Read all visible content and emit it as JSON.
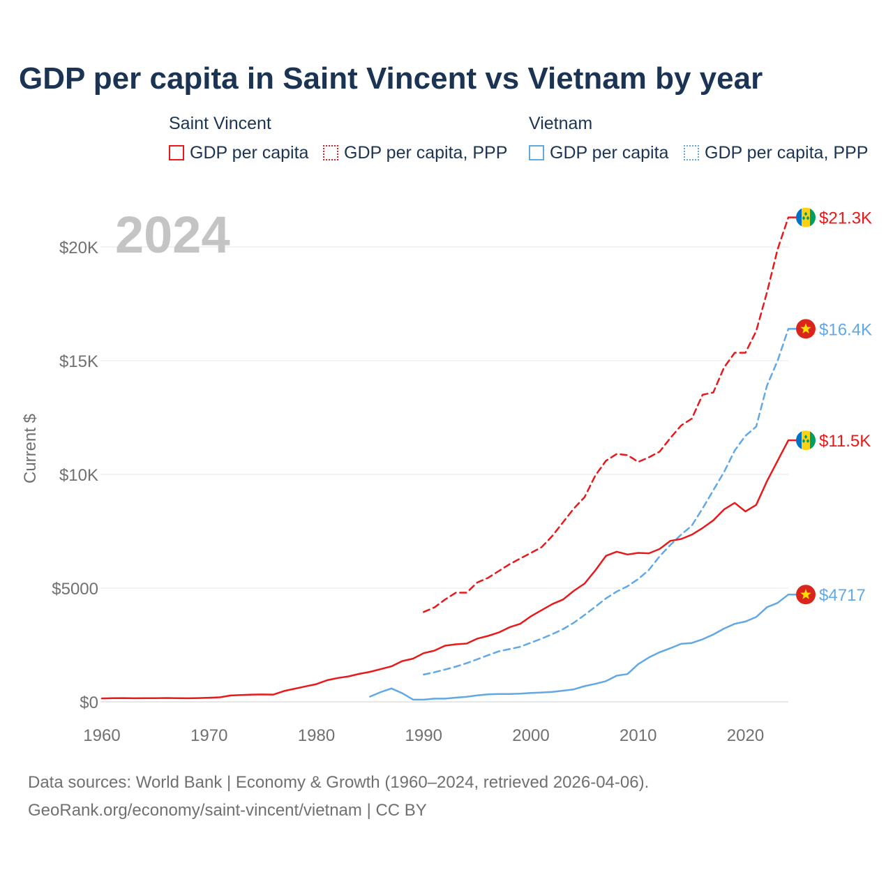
{
  "title": "GDP per capita in Saint Vincent vs Vietnam by year",
  "legend": {
    "groups": [
      {
        "name": "Saint Vincent",
        "items": [
          "GDP per capita",
          "GDP per capita, PPP"
        ]
      },
      {
        "name": "Vietnam",
        "items": [
          "GDP per capita",
          "GDP per capita, PPP"
        ]
      }
    ]
  },
  "colors": {
    "saint_vincent": "#e8191b",
    "vietnam": "#62a8e5",
    "title": "#1b3454",
    "year_watermark": "#c4c4c4"
  },
  "year_label": "2024",
  "chart_data": {
    "type": "line",
    "title": "GDP per capita in Saint Vincent vs Vietnam by year",
    "xlabel": "",
    "ylabel": "Current $",
    "xlim": [
      1960,
      2024
    ],
    "ylim": [
      0,
      22000
    ],
    "x_ticks": [
      1960,
      1970,
      1980,
      1990,
      2000,
      2010,
      2020
    ],
    "x_tick_labels": [
      "1960",
      "1970",
      "1980",
      "1990",
      "2000",
      "2010",
      "2020"
    ],
    "y_ticks": [
      0,
      5000,
      10000,
      15000,
      20000
    ],
    "y_tick_labels": [
      "$0",
      "$5000",
      "$10K",
      "$15K",
      "$20K"
    ],
    "grid": true,
    "series": [
      {
        "name": "Saint Vincent GDP per capita PPP",
        "country": "Saint Vincent",
        "color": "#e8191b",
        "dash": "dashed",
        "end_label": "$21.3K",
        "flag": "saint-vincent",
        "x": [
          1990,
          1991,
          1992,
          1993,
          1994,
          1995,
          1996,
          1997,
          1998,
          1999,
          2000,
          2001,
          2002,
          2003,
          2004,
          2005,
          2006,
          2007,
          2008,
          2009,
          2010,
          2011,
          2012,
          2013,
          2014,
          2015,
          2016,
          2017,
          2018,
          2019,
          2020,
          2021,
          2022,
          2023,
          2024
        ],
        "values": [
          3950,
          4150,
          4500,
          4800,
          4800,
          5250,
          5450,
          5750,
          6050,
          6300,
          6550,
          6800,
          7300,
          7900,
          8500,
          9000,
          9950,
          10600,
          10900,
          10850,
          10550,
          10750,
          11000,
          11600,
          12150,
          12450,
          13500,
          13600,
          14700,
          15350,
          15350,
          16300,
          18000,
          19900,
          21300
        ]
      },
      {
        "name": "Vietnam GDP per capita PPP",
        "country": "Vietnam",
        "color": "#62a8e5",
        "dash": "dashed",
        "end_label": "$16.4K",
        "flag": "vietnam",
        "x": [
          1990,
          1991,
          1992,
          1993,
          1994,
          1995,
          1996,
          1997,
          1998,
          1999,
          2000,
          2001,
          2002,
          2003,
          2004,
          2005,
          2006,
          2007,
          2008,
          2009,
          2010,
          2011,
          2012,
          2013,
          2014,
          2015,
          2016,
          2017,
          2018,
          2019,
          2020,
          2021,
          2022,
          2023,
          2024
        ],
        "values": [
          1200,
          1300,
          1420,
          1550,
          1700,
          1870,
          2050,
          2220,
          2320,
          2420,
          2600,
          2780,
          2980,
          3200,
          3480,
          3820,
          4180,
          4550,
          4850,
          5080,
          5400,
          5800,
          6400,
          6900,
          7350,
          7750,
          8500,
          9300,
          10100,
          11050,
          11700,
          12100,
          13900,
          15000,
          16400
        ]
      },
      {
        "name": "Saint Vincent GDP per capita",
        "country": "Saint Vincent",
        "color": "#e8191b",
        "dash": "solid",
        "end_label": "$11.5K",
        "flag": "saint-vincent",
        "x": [
          1960,
          1961,
          1962,
          1963,
          1964,
          1965,
          1966,
          1967,
          1968,
          1969,
          1970,
          1971,
          1972,
          1973,
          1974,
          1975,
          1976,
          1977,
          1978,
          1979,
          1980,
          1981,
          1982,
          1983,
          1984,
          1985,
          1986,
          1987,
          1988,
          1989,
          1990,
          1991,
          1992,
          1993,
          1994,
          1995,
          1996,
          1997,
          1998,
          1999,
          2000,
          2001,
          2002,
          2003,
          2004,
          2005,
          2006,
          2007,
          2008,
          2009,
          2010,
          2011,
          2012,
          2013,
          2014,
          2015,
          2016,
          2017,
          2018,
          2019,
          2020,
          2021,
          2022,
          2023,
          2024
        ],
        "values": [
          150,
          160,
          165,
          155,
          160,
          162,
          168,
          160,
          155,
          165,
          180,
          200,
          280,
          300,
          320,
          325,
          320,
          480,
          580,
          680,
          780,
          950,
          1050,
          1120,
          1230,
          1320,
          1440,
          1560,
          1790,
          1900,
          2140,
          2250,
          2470,
          2530,
          2560,
          2780,
          2900,
          3050,
          3280,
          3430,
          3760,
          4030,
          4300,
          4500,
          4880,
          5200,
          5780,
          6420,
          6600,
          6480,
          6550,
          6530,
          6720,
          7080,
          7160,
          7350,
          7640,
          7980,
          8460,
          8750,
          8370,
          8660,
          9700,
          10600,
          11500
        ]
      },
      {
        "name": "Vietnam GDP per capita",
        "country": "Vietnam",
        "color": "#62a8e5",
        "dash": "solid",
        "end_label": "$4717",
        "flag": "vietnam",
        "x": [
          1985,
          1986,
          1987,
          1988,
          1989,
          1990,
          1991,
          1992,
          1993,
          1994,
          1995,
          1996,
          1997,
          1998,
          1999,
          2000,
          2001,
          2002,
          2003,
          2004,
          2005,
          2006,
          2007,
          2008,
          2009,
          2010,
          2011,
          2012,
          2013,
          2014,
          2015,
          2016,
          2017,
          2018,
          2019,
          2020,
          2021,
          2022,
          2023,
          2024
        ],
        "values": [
          230,
          430,
          590,
          380,
          100,
          95,
          140,
          140,
          185,
          225,
          285,
          330,
          345,
          345,
          360,
          390,
          410,
          435,
          490,
          550,
          690,
          790,
          910,
          1150,
          1220,
          1660,
          1950,
          2180,
          2360,
          2550,
          2590,
          2750,
          2960,
          3220,
          3430,
          3530,
          3730,
          4160,
          4350,
          4717
        ]
      }
    ]
  },
  "footer": {
    "sources": "Data sources: World Bank | Economy & Growth (1960–2024, retrieved 2026-04-06).",
    "credit": "GeoRank.org/economy/saint-vincent/vietnam | CC BY"
  }
}
